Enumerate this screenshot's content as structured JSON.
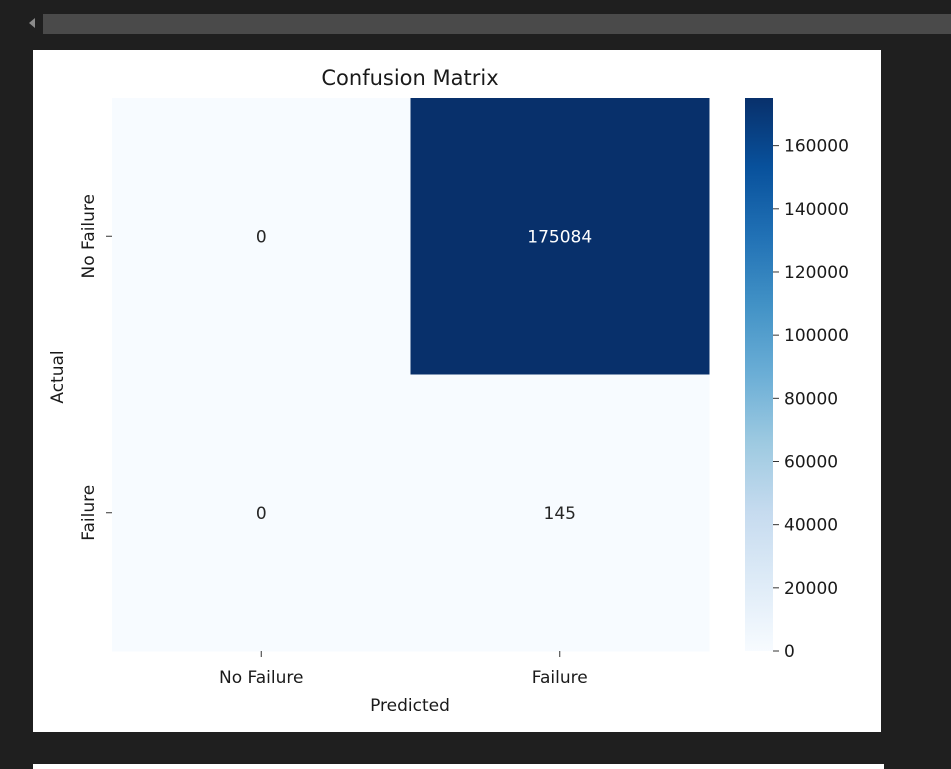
{
  "chart_data": {
    "type": "heatmap",
    "title": "Confusion Matrix",
    "xlabel": "Predicted",
    "ylabel": "Actual",
    "x_categories": [
      "No Failure",
      "Failure"
    ],
    "y_categories": [
      "No Failure",
      "Failure"
    ],
    "values": [
      [
        0,
        175084
      ],
      [
        0,
        145
      ]
    ],
    "value_labels": [
      [
        "0",
        "175084"
      ],
      [
        "0",
        "145"
      ]
    ],
    "colorbar": {
      "colormap": "Blues",
      "range": [
        0,
        175084
      ],
      "ticks": [
        0,
        20000,
        40000,
        60000,
        80000,
        100000,
        120000,
        140000,
        160000
      ],
      "tick_labels": [
        "0",
        "20000",
        "40000",
        "60000",
        "80000",
        "100000",
        "120000",
        "140000",
        "160000"
      ]
    }
  }
}
